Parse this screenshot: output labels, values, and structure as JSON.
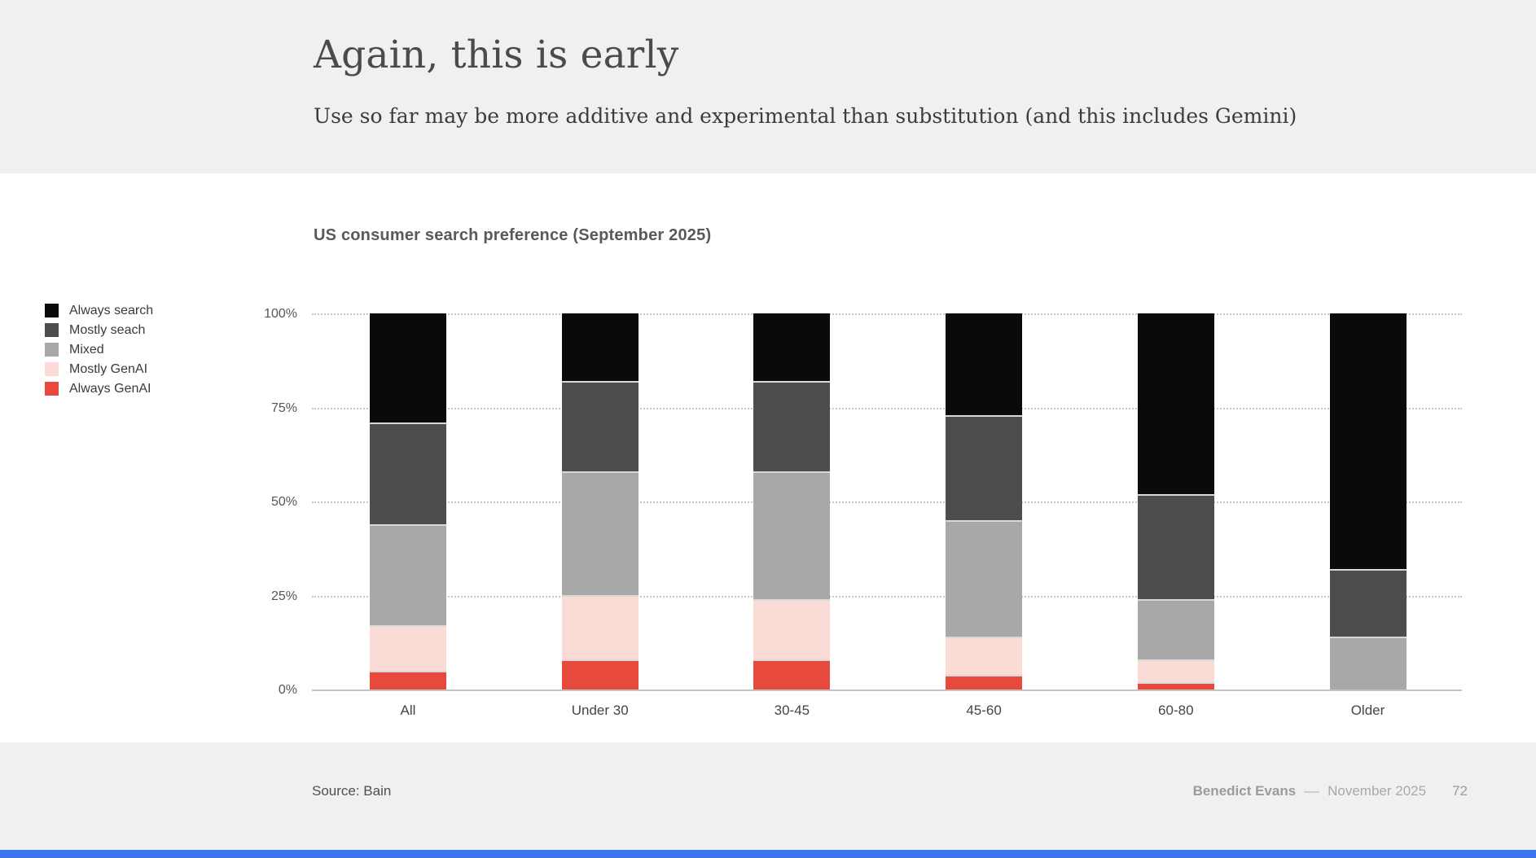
{
  "slide": {
    "title": "Again, this is early",
    "subtitle": "Use so far may be more additive and experimental than substitution (and this includes Gemini)"
  },
  "chart_data": {
    "type": "bar",
    "stacked": true,
    "title": "US consumer search preference (September 2025)",
    "categories": [
      "All",
      "Under 30",
      "30-45",
      "45-60",
      "60-80",
      "Older"
    ],
    "series": [
      {
        "name": "Always GenAI",
        "color": "#e74a3d",
        "values": [
          5,
          8,
          8,
          4,
          2,
          0
        ]
      },
      {
        "name": "Mostly GenAI",
        "color": "#fadbd6",
        "values": [
          12,
          17,
          16,
          10,
          6,
          0
        ]
      },
      {
        "name": "Mixed",
        "color": "#a8a8a8",
        "values": [
          27,
          33,
          34,
          31,
          16,
          14
        ]
      },
      {
        "name": "Mostly seach",
        "color": "#4d4d4d",
        "values": [
          27,
          24,
          24,
          28,
          28,
          18
        ]
      },
      {
        "name": "Always search",
        "color": "#0a0a0a",
        "values": [
          29,
          18,
          18,
          27,
          48,
          68
        ]
      }
    ],
    "ylim": [
      0,
      100
    ],
    "yticks": [
      0,
      25,
      50,
      75,
      100
    ],
    "ytick_labels": [
      "0%",
      "25%",
      "50%",
      "75%",
      "100%"
    ],
    "grid": "horizontal dotted",
    "legend_position": "left"
  },
  "legend": {
    "items": [
      {
        "label": "Always search",
        "color": "#0a0a0a"
      },
      {
        "label": "Mostly seach",
        "color": "#4d4d4d"
      },
      {
        "label": "Mixed",
        "color": "#a8a8a8"
      },
      {
        "label": "Mostly GenAI",
        "color": "#fadbd6"
      },
      {
        "label": "Always GenAI",
        "color": "#e74a3d"
      }
    ]
  },
  "footer": {
    "source": "Source: Bain",
    "author": "Benedict Evans",
    "separator": "––",
    "date": "November 2025",
    "page": "72"
  },
  "accent": {
    "progress_bar_color": "#3c74f0"
  }
}
